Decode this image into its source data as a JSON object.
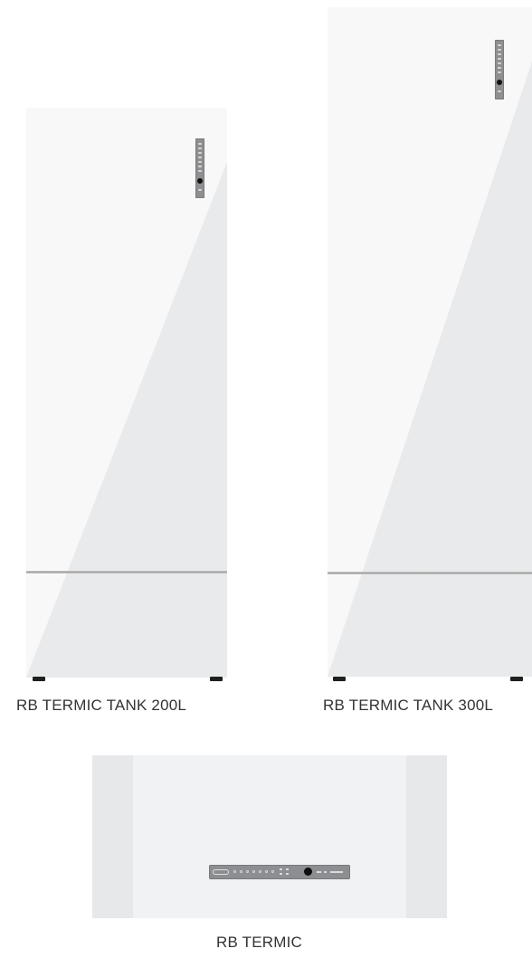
{
  "products": [
    {
      "label": "RB TERMIC TANK 200L",
      "icon": "water-tank-icon"
    },
    {
      "label": "RB TERMIC TANK 300L",
      "icon": "water-tank-icon"
    },
    {
      "label": "RB TERMIC",
      "icon": "heat-pump-unit-icon"
    }
  ],
  "colors": {
    "unit_body": "#f2f3f4",
    "unit_side": "#e7e8ea",
    "control_panel": "#8e8f91",
    "seam": "#a6a6a6",
    "feet": "#1f1f1f",
    "label_text": "#333333"
  }
}
